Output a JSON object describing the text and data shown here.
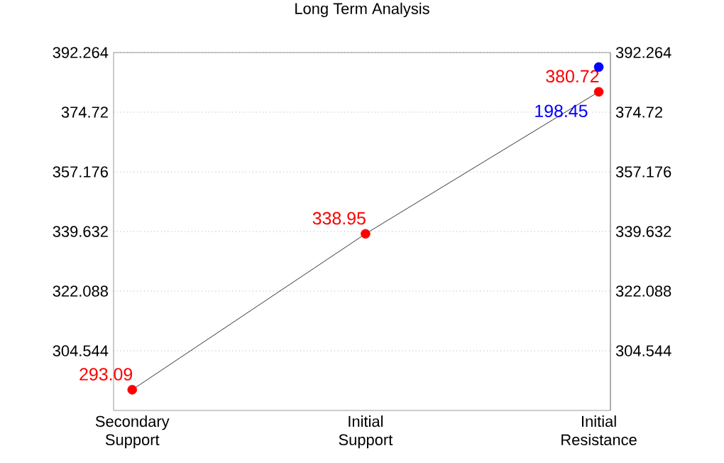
{
  "chart_data": {
    "type": "line",
    "title": "Long Term Analysis",
    "categories": [
      "Secondary Support",
      "Initial Support",
      "Initial Resistance"
    ],
    "series": [
      {
        "type": "line",
        "color": "#000000",
        "marker": "none",
        "values": [
          293.09,
          338.95,
          380.72
        ]
      },
      {
        "type": "scatter",
        "color": "#ff0000",
        "marker": "circle",
        "values": [
          293.09,
          338.95,
          380.72
        ],
        "value_labels": [
          "293.09",
          "338.95",
          "380.72"
        ]
      },
      {
        "type": "scatter",
        "color": "#0000ff",
        "marker": "circle",
        "values": [
          null,
          null,
          388
        ]
      }
    ],
    "annotations": [
      "198.45"
    ],
    "ylim": [
      287,
      392.264
    ],
    "yticks": [
      304.544,
      322.088,
      339.632,
      357.176,
      374.72,
      392.264
    ],
    "y2lim": [
      287,
      392.264
    ],
    "y2ticks": [
      304.544,
      322.088,
      339.632,
      357.176,
      374.72,
      392.264
    ],
    "grid": "y",
    "legend": false
  }
}
